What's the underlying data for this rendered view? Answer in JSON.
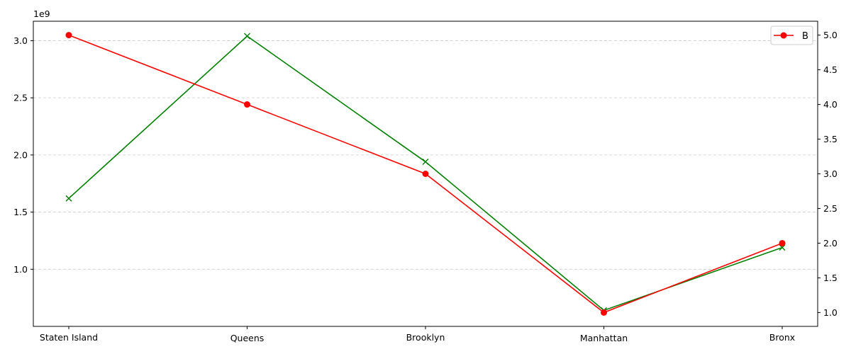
{
  "chart_data": {
    "type": "line",
    "categories": [
      "Staten Island",
      "Queens",
      "Brooklyn",
      "Manhattan",
      "Bronx"
    ],
    "left_axis": {
      "ticks": [
        1.0,
        1.5,
        2.0,
        2.5,
        3.0
      ],
      "tick_labels": [
        "1.0",
        "1.5",
        "2.0",
        "2.5",
        "3.0"
      ],
      "offset_label": "1e9",
      "range": [
        0.5,
        3.17
      ]
    },
    "right_axis": {
      "ticks": [
        1.0,
        1.5,
        2.0,
        2.5,
        3.0,
        3.5,
        4.0,
        4.5,
        5.0
      ],
      "tick_labels": [
        "1.0",
        "1.5",
        "2.0",
        "2.5",
        "3.0",
        "3.5",
        "4.0",
        "4.5",
        "5.0"
      ],
      "range": [
        0.8,
        5.2
      ]
    },
    "series": [
      {
        "name": "",
        "axis": "left",
        "color": "#008000",
        "marker": "x",
        "values": [
          1.62,
          3.04,
          1.94,
          0.64,
          1.19
        ]
      },
      {
        "name": "B",
        "axis": "right",
        "color": "#ff0000",
        "marker": "o",
        "values": [
          5.0,
          4.0,
          3.0,
          1.0,
          2.0
        ]
      }
    ],
    "grid": "horizontal dashed",
    "legend": {
      "position": "top-right",
      "entries": [
        "B"
      ]
    }
  }
}
